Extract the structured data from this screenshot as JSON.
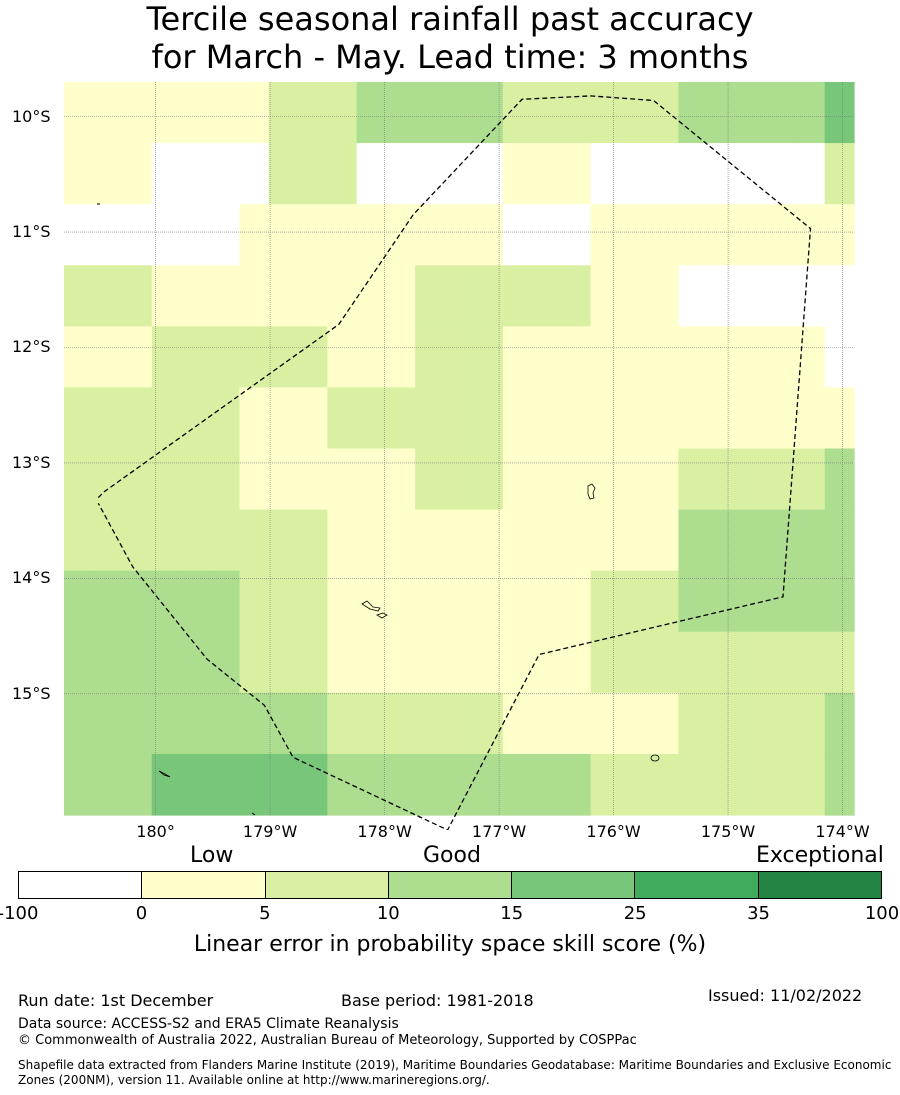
{
  "title": {
    "line1": "Tercile seasonal rainfall past accuracy",
    "line2": "for March - May. Lead time: 3 months"
  },
  "map": {
    "lat_labels": [
      "10°S",
      "11°S",
      "12°S",
      "13°S",
      "14°S",
      "15°S"
    ],
    "lon_labels": [
      "180°",
      "179°W",
      "178°W",
      "177°W",
      "176°W",
      "175°W",
      "174°W"
    ],
    "lon_range": [
      179.2,
      186.1
    ],
    "lat_range": [
      -16.05,
      -9.7
    ],
    "grid_rows": [
      [
        1,
        1,
        1,
        1,
        1,
        1,
        1,
        2,
        2,
        2,
        3,
        3,
        3,
        3,
        3,
        2,
        2,
        2,
        2,
        2,
        2,
        3,
        3,
        3,
        3,
        3,
        4
      ],
      [
        1,
        1,
        1,
        0,
        0,
        0,
        0,
        2,
        2,
        2,
        0,
        0,
        0,
        0,
        0,
        1,
        1,
        1,
        0,
        0,
        0,
        0,
        0,
        0,
        0,
        0,
        2
      ],
      [
        0,
        0,
        0,
        0,
        0,
        0,
        1,
        1,
        1,
        1,
        1,
        1,
        1,
        1,
        1,
        0,
        0,
        0,
        1,
        1,
        1,
        1,
        1,
        1,
        1,
        1,
        1
      ],
      [
        2,
        2,
        2,
        1,
        1,
        1,
        1,
        1,
        1,
        1,
        1,
        1,
        2,
        2,
        2,
        2,
        2,
        2,
        1,
        1,
        1,
        0,
        0,
        0,
        0,
        0,
        0
      ],
      [
        1,
        1,
        1,
        2,
        2,
        2,
        2,
        2,
        2,
        1,
        1,
        1,
        2,
        2,
        2,
        1,
        1,
        1,
        1,
        1,
        1,
        1,
        1,
        1,
        1,
        1,
        0
      ],
      [
        2,
        2,
        2,
        2,
        2,
        2,
        1,
        1,
        1,
        2,
        2,
        2,
        2,
        2,
        2,
        1,
        1,
        1,
        1,
        1,
        1,
        1,
        1,
        1,
        1,
        1,
        1
      ],
      [
        2,
        2,
        2,
        2,
        2,
        2,
        1,
        1,
        1,
        1,
        1,
        1,
        2,
        2,
        2,
        1,
        1,
        1,
        1,
        1,
        1,
        2,
        2,
        2,
        2,
        2,
        3
      ],
      [
        2,
        2,
        2,
        2,
        2,
        2,
        2,
        2,
        2,
        1,
        1,
        1,
        1,
        1,
        1,
        1,
        1,
        1,
        1,
        1,
        1,
        3,
        3,
        3,
        3,
        3,
        3
      ],
      [
        3,
        3,
        3,
        3,
        3,
        3,
        2,
        2,
        2,
        1,
        1,
        1,
        1,
        1,
        1,
        1,
        1,
        1,
        2,
        2,
        2,
        3,
        3,
        3,
        3,
        3,
        3
      ],
      [
        3,
        3,
        3,
        3,
        3,
        3,
        2,
        2,
        2,
        1,
        1,
        1,
        1,
        1,
        1,
        1,
        1,
        1,
        2,
        2,
        2,
        2,
        2,
        2,
        2,
        2,
        2
      ],
      [
        3,
        3,
        3,
        3,
        3,
        3,
        3,
        3,
        3,
        2,
        2,
        2,
        2,
        2,
        2,
        1,
        1,
        1,
        1,
        1,
        1,
        2,
        2,
        2,
        2,
        2,
        3
      ],
      [
        3,
        3,
        3,
        4,
        4,
        4,
        4,
        4,
        4,
        3,
        3,
        3,
        3,
        3,
        3,
        3,
        3,
        3,
        2,
        2,
        2,
        2,
        2,
        2,
        2,
        2,
        3
      ]
    ],
    "eez_boundary": [
      [
        179.5,
        -13.3
      ],
      [
        179.55,
        -13.25
      ],
      [
        181.6,
        -11.8
      ],
      [
        182.25,
        -10.85
      ],
      [
        183.2,
        -9.85
      ],
      [
        183.8,
        -9.82
      ],
      [
        184.35,
        -9.86
      ],
      [
        185.72,
        -10.97
      ],
      [
        185.48,
        -14.16
      ],
      [
        183.35,
        -14.66
      ],
      [
        182.55,
        -16.18
      ],
      [
        181.2,
        -15.55
      ],
      [
        180.95,
        -15.1
      ],
      [
        180.45,
        -14.7
      ],
      [
        179.8,
        -13.9
      ],
      [
        179.5,
        -13.35
      ]
    ]
  },
  "colorbar": {
    "categories": [
      "Low",
      "Good",
      "Exceptional"
    ],
    "tick_labels": [
      "-100",
      "0",
      "5",
      "10",
      "15",
      "25",
      "35",
      "100"
    ],
    "colors": [
      "#ffffff",
      "#ffffcc",
      "#d9f0a3",
      "#addd8e",
      "#78c679",
      "#41ab5d",
      "#238443"
    ],
    "title": "Linear error in probability space skill score (%)"
  },
  "footer": {
    "run_date": "Run date: 1st December",
    "base_period": "Base period: 1981-2018",
    "issued": "Issued: 11/02/2022",
    "data_source": "Data source: ACCESS-S2 and ERA5 Climate Reanalysis",
    "copyright": "© Commonwealth of Australia 2022, Australian Bureau of Meteorology, Supported by COSPPac",
    "shapefile": "Shapefile data extracted from Flanders Marine Institute (2019), Maritime Boundaries Geodatabase: Maritime Boundaries and Exclusive Economic Zones (200NM), version 11. Available online at http://www.marineregions.org/."
  }
}
